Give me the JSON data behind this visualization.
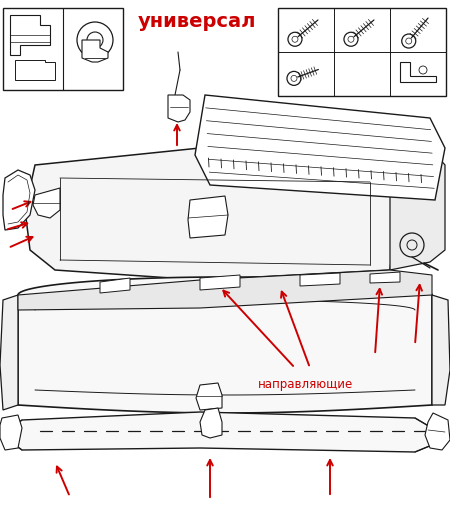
{
  "title": "универсал",
  "label_guides": "направляющие",
  "bg_color": "#ffffff",
  "line_color": "#1a1a1a",
  "arrow_color": "#cc0000",
  "title_color": "#cc0000",
  "title_fontsize": 14,
  "label_fontsize": 8.5,
  "fig_width": 4.5,
  "fig_height": 5.31,
  "dpi": 100
}
